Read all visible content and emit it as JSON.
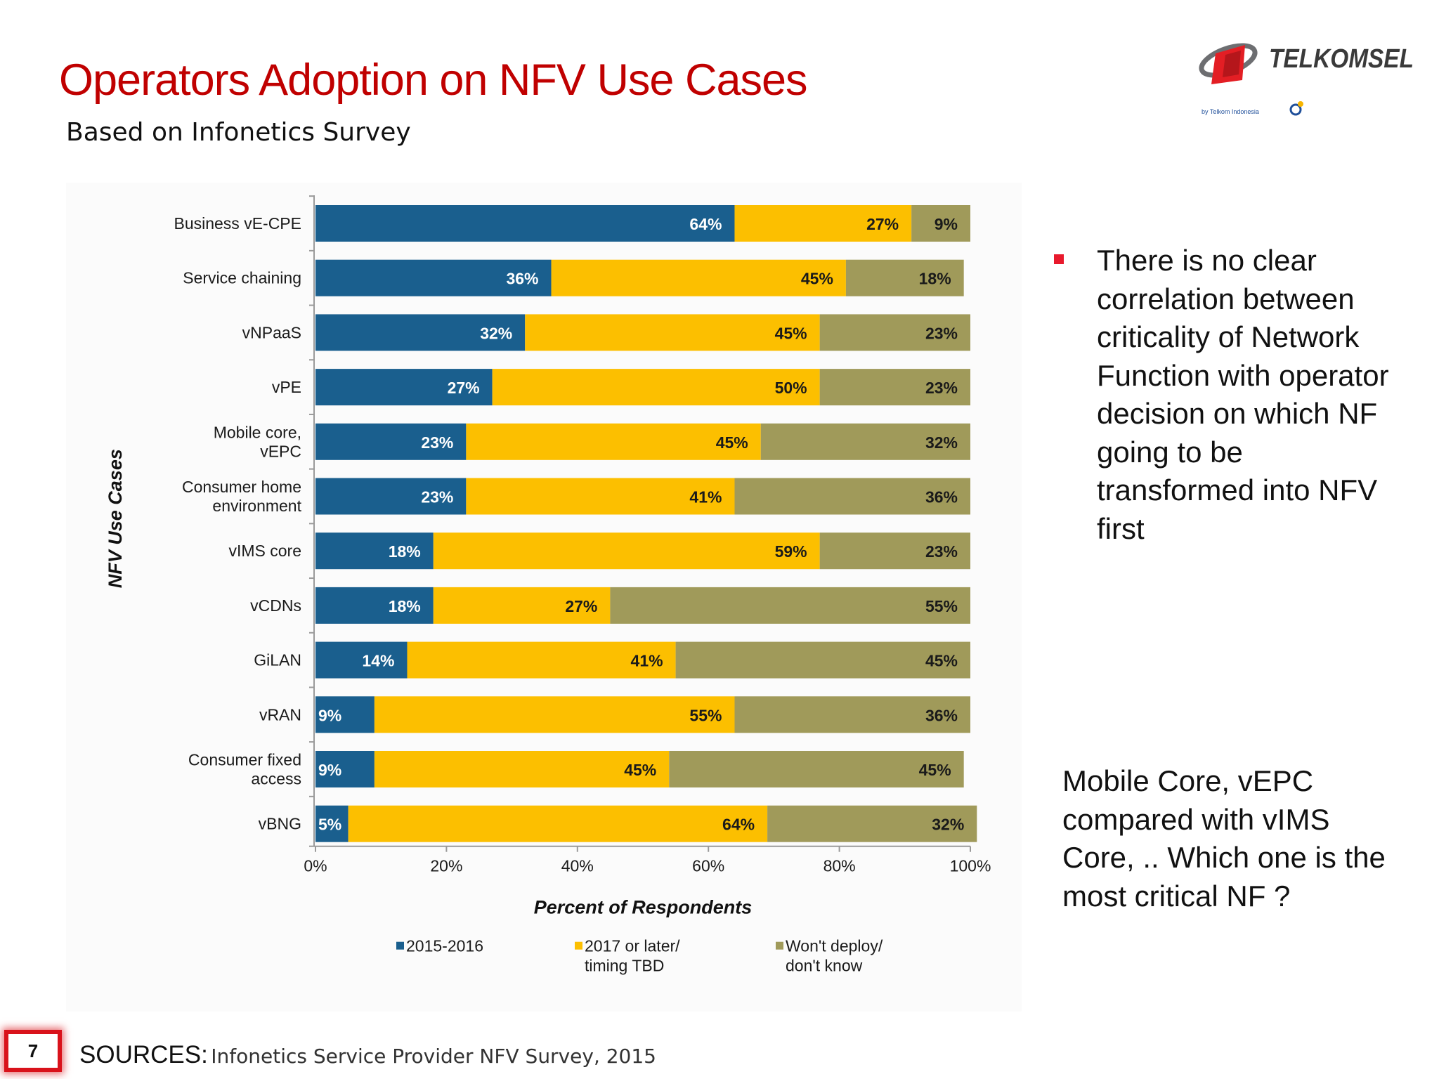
{
  "slide": {
    "title": "Operators Adoption on NFV Use Cases",
    "subtitle": "Based on Infonetics Survey",
    "page_number": "7",
    "sources_label": "SOURCES:",
    "sources_text": "Infonetics Service Provider  NFV Survey, 2015"
  },
  "logo": {
    "brand": "TELKOMSEL",
    "tagline": "by Telkom Indonesia",
    "colors": {
      "red": "#e31e24",
      "grey": "#6d6e71",
      "text": "#3a3a3a"
    }
  },
  "notes": {
    "bullet": "There is no clear correlation between criticality of Network Function with operator decision on which NF going to be transformed  into NFV first",
    "question": "Mobile Core, vEPC compared with vIMS Core, .. Which one is the most critical NF ?",
    "bullet_color": "#e8192c"
  },
  "chart_data": {
    "type": "bar",
    "orientation": "horizontal",
    "stacked": true,
    "ylabel": "NFV Use Cases",
    "xlabel": "Percent of Respondents",
    "xlim": [
      0,
      100
    ],
    "xticks": [
      "0%",
      "20%",
      "40%",
      "60%",
      "80%",
      "100%"
    ],
    "grid": false,
    "legend_position": "bottom",
    "categories": [
      "Business vE-CPE",
      "Service chaining",
      "vNPaaS",
      "vPE",
      "Mobile core,\nvEPC",
      "Consumer home\nenvironment",
      "vIMS core",
      "vCDNs",
      "GiLAN",
      "vRAN",
      "Consumer fixed\naccess",
      "vBNG"
    ],
    "series": [
      {
        "name": "2015-2016",
        "color": "#1a5f8e",
        "values": [
          64,
          36,
          32,
          27,
          23,
          23,
          18,
          18,
          14,
          9,
          9,
          5
        ]
      },
      {
        "name": "2017 or later/\ntiming TBD",
        "color": "#fcbf00",
        "values": [
          27,
          45,
          45,
          50,
          45,
          41,
          59,
          27,
          41,
          55,
          45,
          64
        ]
      },
      {
        "name": "Won't deploy/\ndon't know",
        "color": "#a09a5a",
        "values": [
          9,
          18,
          23,
          23,
          32,
          36,
          23,
          55,
          45,
          36,
          45,
          32
        ]
      }
    ]
  }
}
